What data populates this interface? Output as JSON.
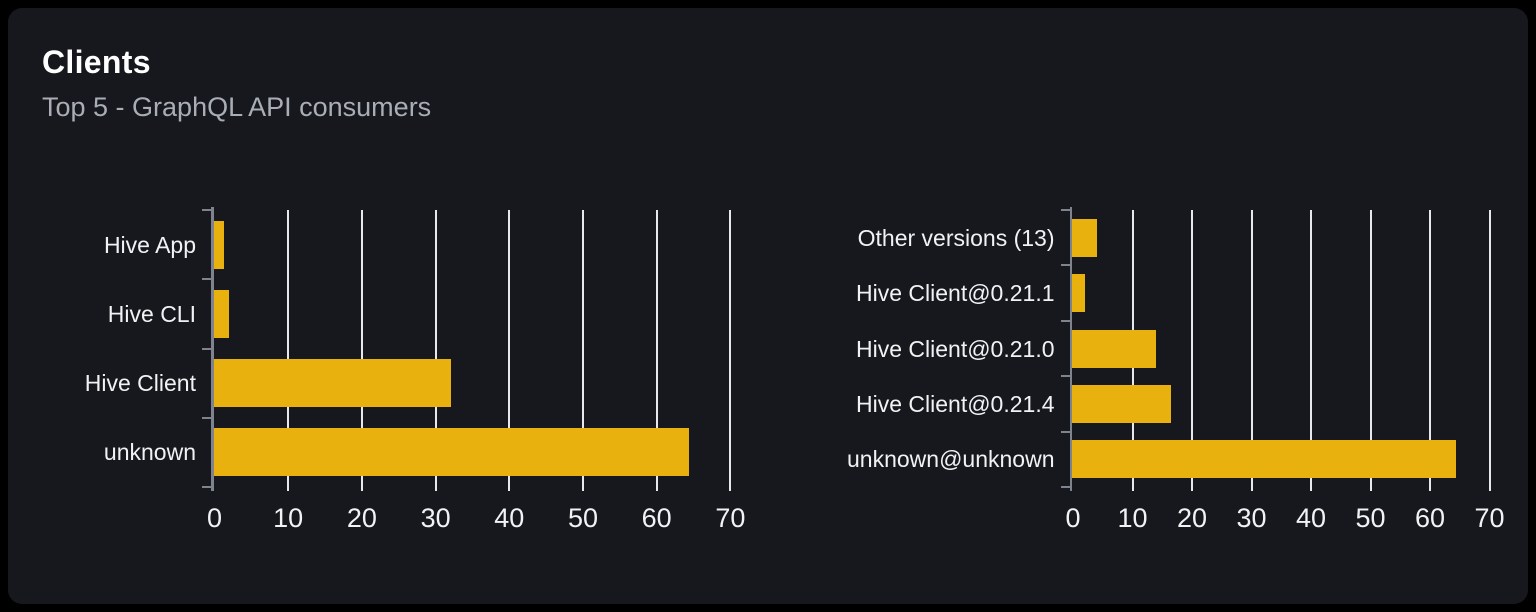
{
  "panel": {
    "title": "Clients",
    "subtitle": "Top 5 - GraphQL API consumers"
  },
  "colors": {
    "page_bg": "#000000",
    "card_bg": "#16181d",
    "title_text": "#ffffff",
    "subtitle_text": "#a9aeb6",
    "label_text": "#f1f2f4",
    "gridline": "#e5e8ef",
    "axis": "#7e838d",
    "bar": "#e9b10e"
  },
  "chart_data": [
    {
      "id": "clients-by-name",
      "type": "bar",
      "orientation": "horizontal",
      "title": "",
      "categories": [
        "Hive App",
        "Hive CLI",
        "Hive Client",
        "unknown"
      ],
      "values": [
        1.3,
        2.0,
        32.1,
        64.4
      ],
      "category_order": "top-to-bottom",
      "x_ticks": [
        0,
        10,
        20,
        30,
        40,
        50,
        60,
        70
      ],
      "xlim": [
        0,
        72
      ],
      "xlabel": "",
      "ylabel": "",
      "grid": true,
      "legend": "none",
      "bar_color": "#e9b10e"
    },
    {
      "id": "clients-by-version",
      "type": "bar",
      "orientation": "horizontal",
      "title": "",
      "categories": [
        "Other versions (13)",
        "Hive Client@0.21.1",
        "Hive Client@0.21.0",
        "Hive Client@0.21.4",
        "unknown@unknown"
      ],
      "values": [
        4.0,
        2.0,
        13.9,
        16.5,
        64.4
      ],
      "category_order": "top-to-bottom",
      "x_ticks": [
        0,
        10,
        20,
        30,
        40,
        50,
        60,
        70
      ],
      "xlim": [
        0,
        72
      ],
      "xlabel": "",
      "ylabel": "",
      "grid": true,
      "legend": "none",
      "bar_color": "#e9b10e"
    }
  ]
}
